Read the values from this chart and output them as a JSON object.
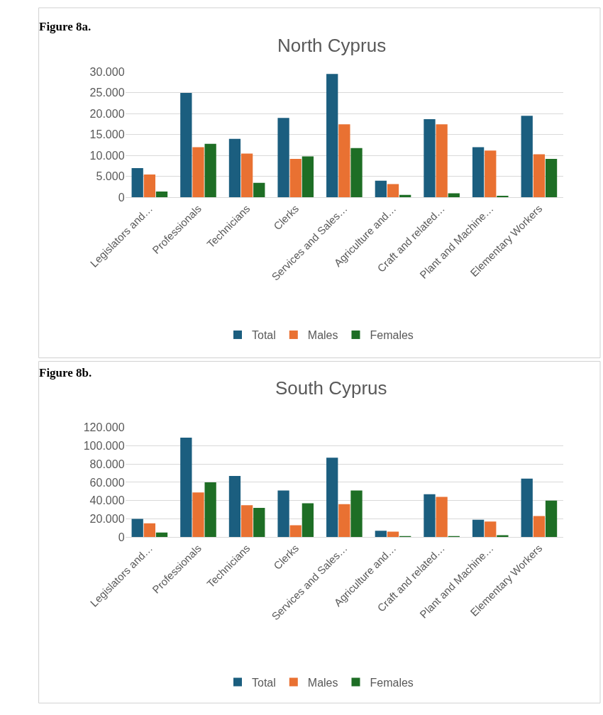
{
  "chart_data": [
    {
      "type": "bar",
      "title": "North Cyprus",
      "annotations": [
        "Figure 8a."
      ],
      "categories": [
        "Legislators and…",
        "Professionals",
        "Technicians",
        "Clerks",
        "Services and Sales…",
        "Agriculture and…",
        "Craft and related…",
        "Plant and Machine…",
        "Elementary Workers"
      ],
      "series": [
        {
          "name": "Total",
          "color": "#1b5e7f",
          "values": [
            7000,
            25000,
            14000,
            19000,
            29500,
            4000,
            18700,
            12000,
            19500
          ]
        },
        {
          "name": "Males",
          "color": "#e97132",
          "values": [
            5500,
            12000,
            10500,
            9200,
            17500,
            3200,
            17500,
            11200,
            10300
          ]
        },
        {
          "name": "Females",
          "color": "#1e6e25",
          "values": [
            1400,
            12800,
            3500,
            9800,
            11800,
            600,
            1000,
            400,
            9200
          ]
        }
      ],
      "ylim": [
        0,
        30000
      ],
      "yticks": [
        0,
        {
          "value": 5000,
          "label": "5.000"
        },
        {
          "value": 10000,
          "label": "10.000"
        },
        {
          "value": 15000,
          "label": "15.000"
        },
        {
          "value": 20000,
          "label": "20.000"
        },
        {
          "value": 25000,
          "label": "25.000"
        },
        {
          "value": 30000,
          "label": "30.000"
        }
      ],
      "grid": "y",
      "legend": "bottom"
    },
    {
      "type": "bar",
      "title": "South Cyprus",
      "annotations": [
        "Figure 8b."
      ],
      "categories": [
        "Legislators and…",
        "Professionals",
        "Technicians",
        "Clerks",
        "Services and Sales…",
        "Agriculture and…",
        "Craft and related…",
        "Plant and Machine…",
        "Elementary Workers"
      ],
      "series": [
        {
          "name": "Total",
          "color": "#1b5e7f",
          "values": [
            20000,
            109000,
            67000,
            51000,
            87000,
            7000,
            47000,
            19000,
            64000
          ]
        },
        {
          "name": "Males",
          "color": "#e97132",
          "values": [
            15000,
            49000,
            35000,
            13000,
            36000,
            6000,
            44000,
            17000,
            23000
          ]
        },
        {
          "name": "Females",
          "color": "#1e6e25",
          "values": [
            5000,
            60000,
            32000,
            37000,
            51000,
            1000,
            1000,
            2000,
            40000
          ]
        }
      ],
      "ylim": [
        0,
        120000
      ],
      "yticks": [
        0,
        {
          "value": 20000,
          "label": "20.000"
        },
        {
          "value": 40000,
          "label": "40.000"
        },
        {
          "value": 60000,
          "label": "60.000"
        },
        {
          "value": 80000,
          "label": "80.000"
        },
        {
          "value": 100000,
          "label": "100.000"
        },
        {
          "value": 120000,
          "label": "120.000"
        }
      ],
      "grid": "y",
      "legend": "bottom"
    }
  ]
}
